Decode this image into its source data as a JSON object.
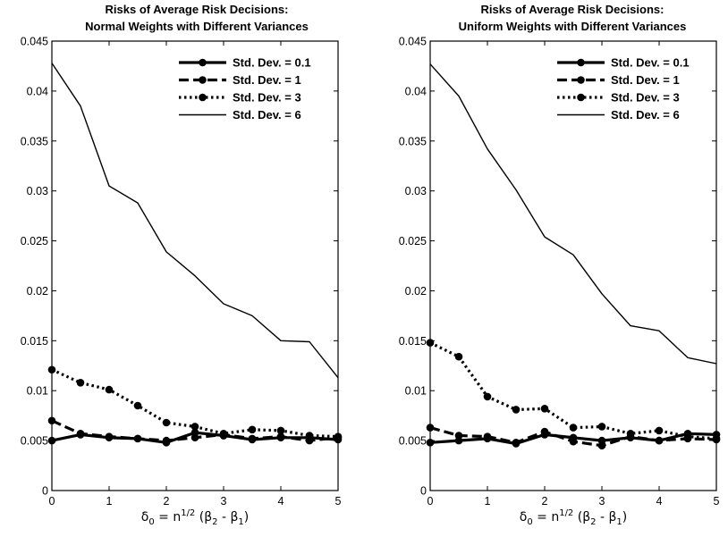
{
  "chart_data": [
    {
      "type": "line",
      "title_line1": "Risks of Average Risk Decisions:",
      "title_line2": "Normal Weights with Different Variances",
      "x_tick_labels": [
        "0",
        "1",
        "2",
        "3",
        "4",
        "5"
      ],
      "y_tick_labels": [
        "0",
        "0.005",
        "0.01",
        "0.015",
        "0.02",
        "0.025",
        "0.03",
        "0.035",
        "0.04",
        "0.045"
      ],
      "xlim": [
        0,
        5
      ],
      "ylim": [
        0,
        0.045
      ],
      "x": [
        0,
        0.5,
        1,
        1.5,
        2,
        2.5,
        3,
        3.5,
        4,
        4.5,
        5
      ],
      "legend_position": "top-right",
      "series": [
        {
          "name": "Std. Dev. = 0.1",
          "style": "solid-marker",
          "values": [
            0.005,
            0.0056,
            0.0053,
            0.0052,
            0.0048,
            0.0058,
            0.0055,
            0.0051,
            0.0053,
            0.0053,
            0.0051
          ]
        },
        {
          "name": "Std. Dev. = 1",
          "style": "dashed-marker",
          "values": [
            0.007,
            0.0057,
            0.0054,
            0.0052,
            0.005,
            0.0053,
            0.0056,
            0.0052,
            0.0054,
            0.005,
            0.0053
          ]
        },
        {
          "name": "Std. Dev. = 3",
          "style": "dotted-marker",
          "values": [
            0.0121,
            0.0108,
            0.0101,
            0.0085,
            0.0068,
            0.0064,
            0.0057,
            0.0061,
            0.006,
            0.0055,
            0.0054
          ]
        },
        {
          "name": "Std. Dev. = 6",
          "style": "thin-solid",
          "values": [
            0.0428,
            0.0385,
            0.0305,
            0.0288,
            0.0239,
            0.0215,
            0.0187,
            0.0175,
            0.015,
            0.0149,
            0.0113
          ]
        }
      ]
    },
    {
      "type": "line",
      "title_line1": "Risks of Average Risk Decisions:",
      "title_line2": "Uniform Weights with Different Variances",
      "x_tick_labels": [
        "0",
        "1",
        "2",
        "3",
        "4",
        "5"
      ],
      "y_tick_labels": [
        "0",
        "0.005",
        "0.01",
        "0.015",
        "0.02",
        "0.025",
        "0.03",
        "0.035",
        "0.04",
        "0.045"
      ],
      "xlim": [
        0,
        5
      ],
      "ylim": [
        0,
        0.045
      ],
      "x": [
        0,
        0.5,
        1,
        1.5,
        2,
        2.5,
        3,
        3.5,
        4,
        4.5,
        5
      ],
      "legend_position": "top-right",
      "series": [
        {
          "name": "Std. Dev. = 0.1",
          "style": "solid-marker",
          "values": [
            0.0048,
            0.005,
            0.0052,
            0.0047,
            0.0056,
            0.0053,
            0.005,
            0.0053,
            0.005,
            0.0057,
            0.0056
          ]
        },
        {
          "name": "Std. Dev. = 1",
          "style": "dashed-marker",
          "values": [
            0.0063,
            0.0055,
            0.0054,
            0.0048,
            0.0059,
            0.0049,
            0.0045,
            0.0054,
            0.005,
            0.0052,
            0.0051
          ]
        },
        {
          "name": "Std. Dev. = 3",
          "style": "dotted-marker",
          "values": [
            0.0148,
            0.0134,
            0.0094,
            0.0081,
            0.0082,
            0.0063,
            0.0064,
            0.0057,
            0.006,
            0.0054,
            0.0052
          ]
        },
        {
          "name": "Std. Dev. = 6",
          "style": "thin-solid",
          "values": [
            0.0427,
            0.0395,
            0.0342,
            0.0301,
            0.0254,
            0.0236,
            0.0197,
            0.0165,
            0.016,
            0.0133,
            0.0127
          ]
        }
      ]
    }
  ],
  "xaxis_label": {
    "delta": "δ",
    "delta_sub": "0",
    "eq": " = n",
    "sup": "1/2",
    "paren_open": " (β",
    "b2_sub": "2",
    "minus": " - β",
    "b1_sub": "1",
    "paren_close": ")"
  }
}
